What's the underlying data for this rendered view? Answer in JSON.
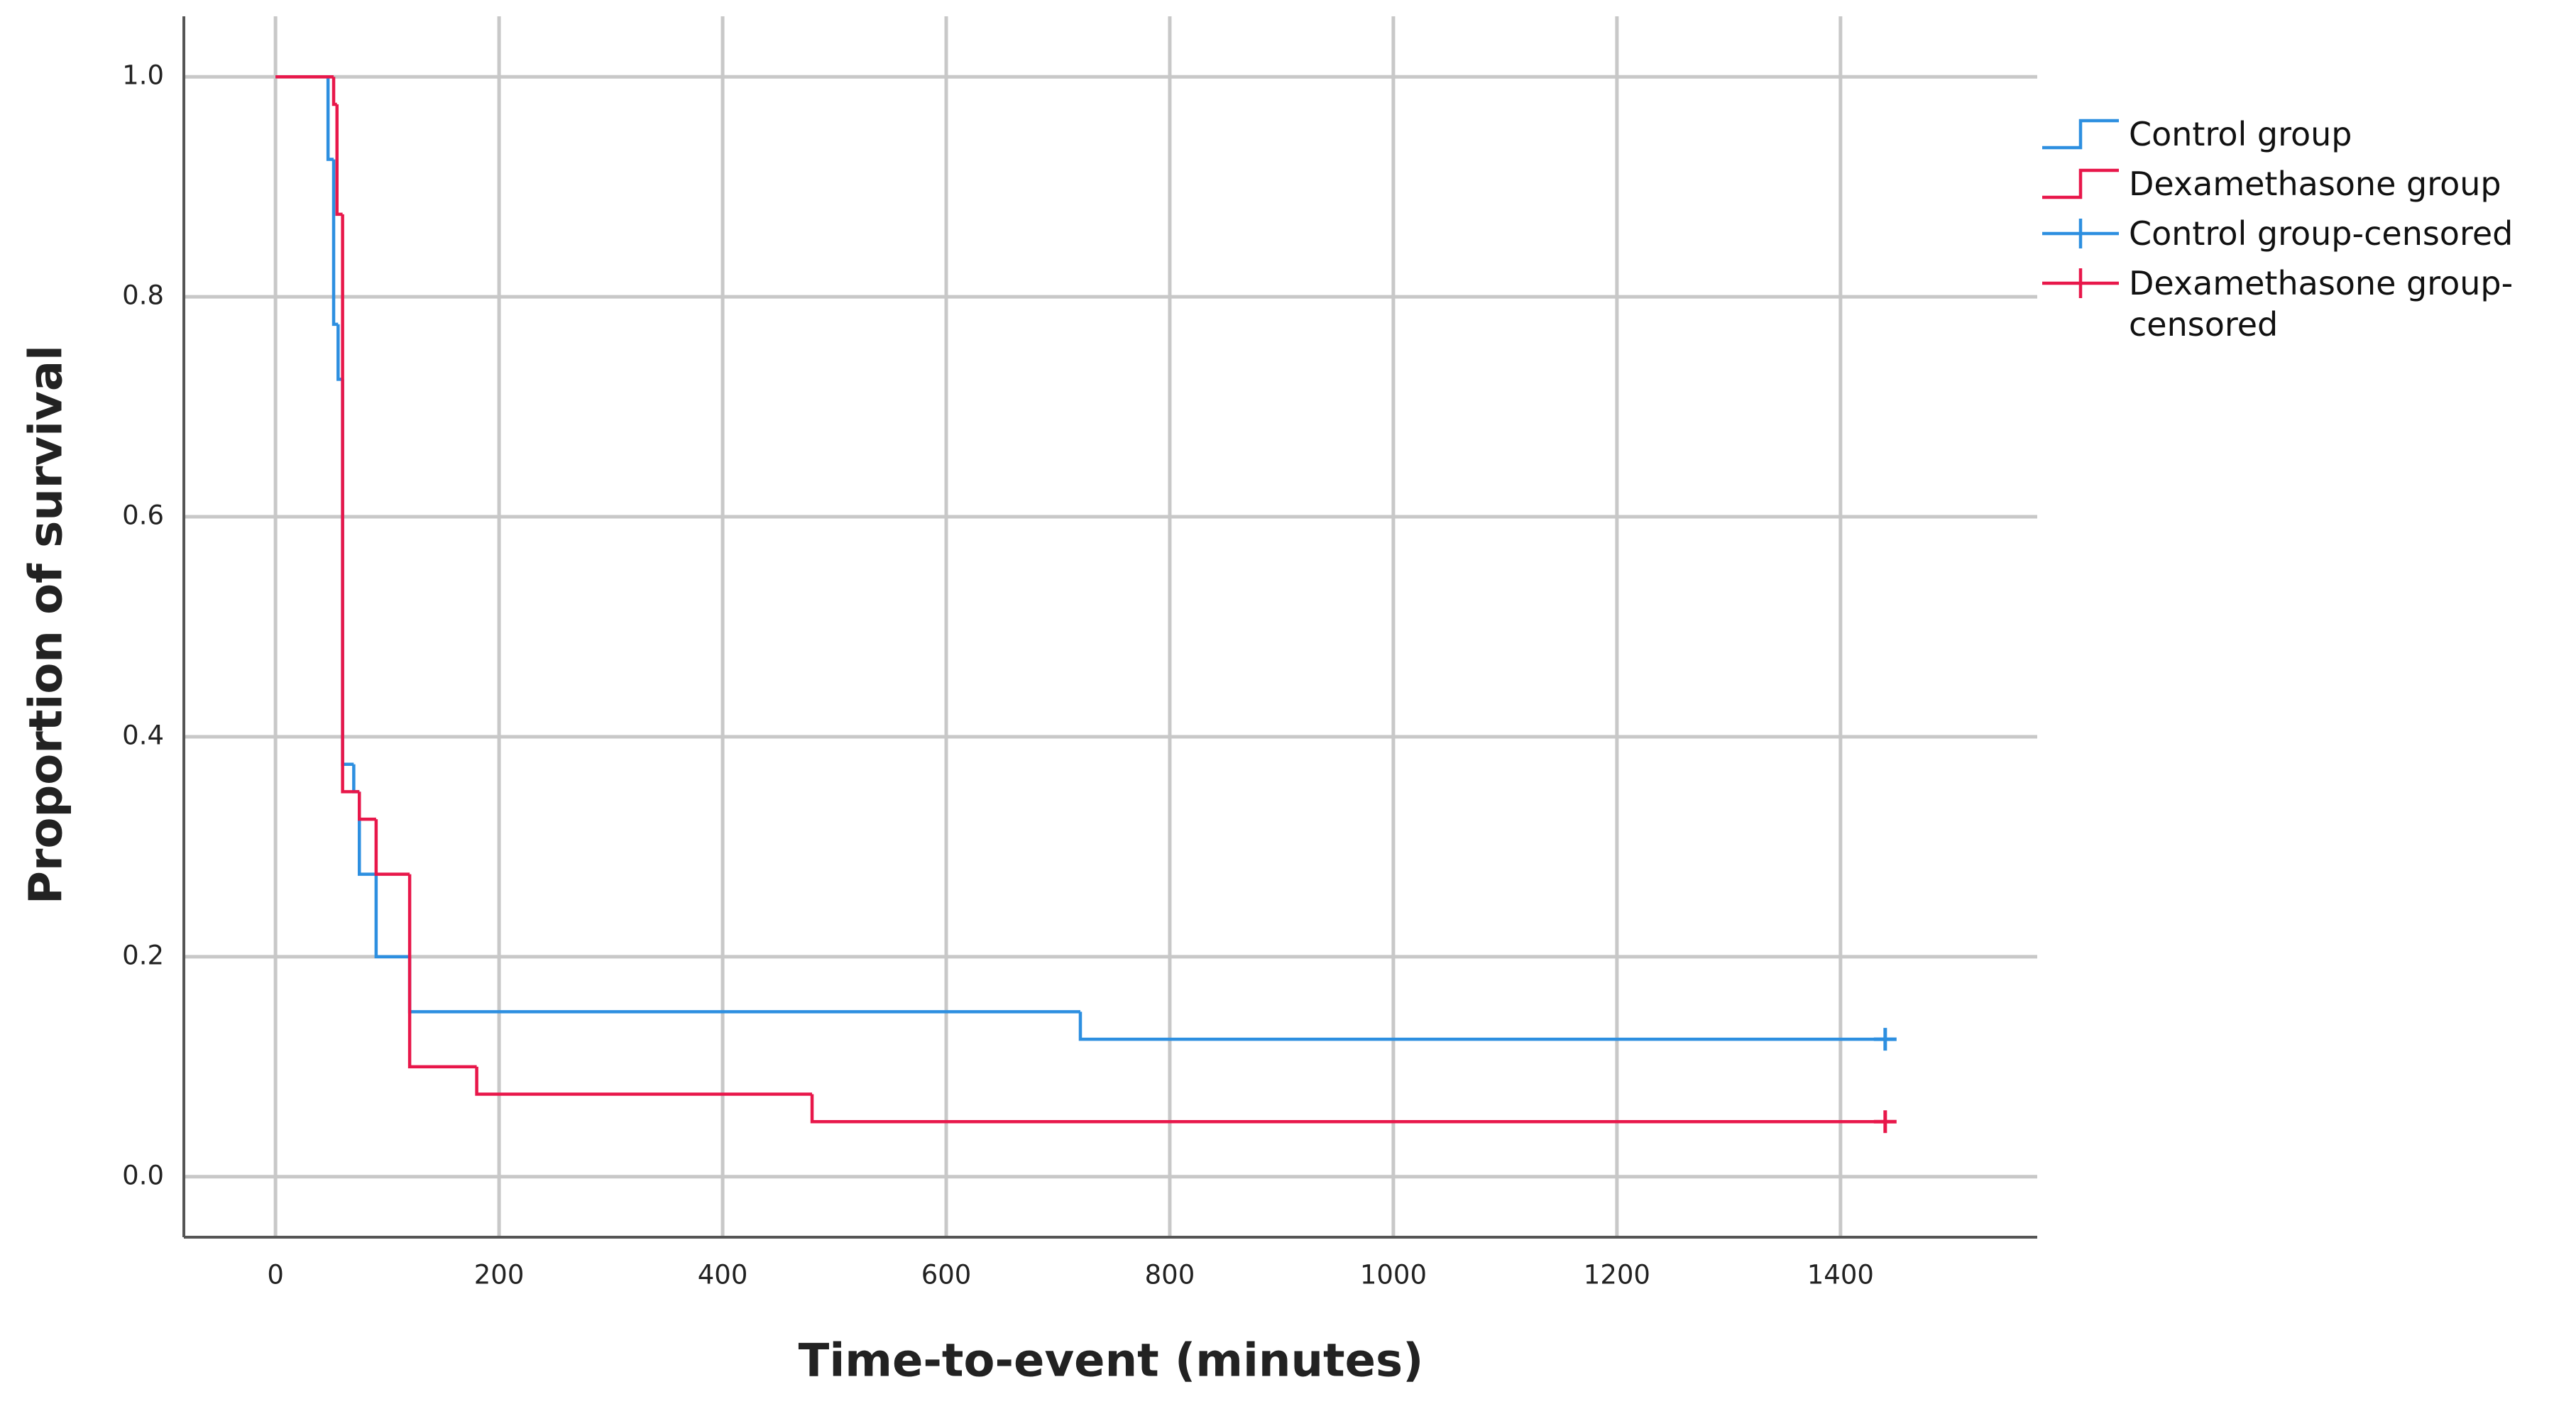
{
  "chart_data": {
    "type": "step",
    "xlabel": "Time-to-event (minutes)",
    "ylabel": "Proportion of survival",
    "xlim": [
      -82,
      1576
    ],
    "ylim": [
      -0.055,
      1.055
    ],
    "xticks": [
      0,
      200,
      400,
      600,
      800,
      1000,
      1200,
      1400
    ],
    "yticks": [
      {
        "value": 0,
        "label": "0.0"
      },
      0.2,
      0.4,
      0.6,
      0.8,
      {
        "value": 1,
        "label": "1.0"
      }
    ],
    "grid": true,
    "series": [
      {
        "name": "Control group",
        "color": "#2d8fe0",
        "x": [
          0,
          47,
          52,
          56,
          60,
          70,
          75,
          90,
          120,
          720,
          1440
        ],
        "values": [
          1.0,
          0.925,
          0.775,
          0.725,
          0.375,
          0.35,
          0.275,
          0.2,
          0.15,
          0.125,
          0.125
        ]
      },
      {
        "name": "Dexamethasone group",
        "color": "#e8174a",
        "x": [
          0,
          52,
          55,
          60,
          75,
          90,
          120,
          180,
          480,
          1440
        ],
        "values": [
          1.0,
          0.975,
          0.875,
          0.35,
          0.325,
          0.275,
          0.1,
          0.075,
          0.05,
          0.05
        ]
      },
      {
        "name": "Control group-censored",
        "color": "#2d8fe0",
        "marker": "plus",
        "x": [
          1440
        ],
        "values": [
          0.125
        ]
      },
      {
        "name": "Dexamethasone group-censored",
        "color": "#e8174a",
        "marker": "plus",
        "x": [
          1440
        ],
        "values": [
          0.05
        ]
      }
    ]
  }
}
